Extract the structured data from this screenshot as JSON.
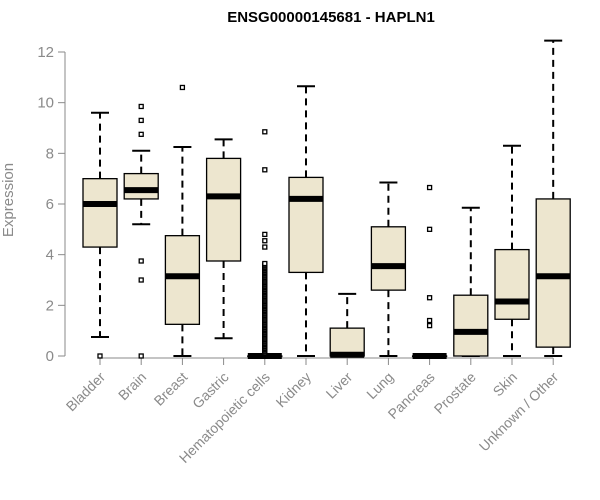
{
  "chart_data": {
    "type": "box",
    "title": "ENSG00000145681 - HAPLN1",
    "xlabel": "",
    "ylabel": "Expression",
    "ylim": [
      0,
      12.4
    ],
    "yticks": [
      0,
      2,
      4,
      6,
      8,
      10,
      12
    ],
    "grid": false,
    "box_fill": "#ede6cf",
    "categories": [
      "Bladder",
      "Brain",
      "Breast",
      "Gastric",
      "Hematopoietic cells",
      "Kidney",
      "Liver",
      "Lung",
      "Pancreas",
      "Prostate",
      "Skin",
      "Unknown / Other"
    ],
    "boxes": [
      {
        "category": "Bladder",
        "whisker_low": 0.75,
        "q1": 4.3,
        "median": 6.0,
        "q3": 7.0,
        "whisker_high": 9.6,
        "outliers": [
          0.0
        ]
      },
      {
        "category": "Brain",
        "whisker_low": 5.2,
        "q1": 6.2,
        "median": 6.55,
        "q3": 7.2,
        "whisker_high": 8.1,
        "outliers": [
          0.0,
          3.0,
          3.75,
          8.75,
          9.3,
          9.85
        ]
      },
      {
        "category": "Breast",
        "whisker_low": 0.0,
        "q1": 1.25,
        "median": 3.15,
        "q3": 4.75,
        "whisker_high": 8.25,
        "outliers": [
          10.6
        ]
      },
      {
        "category": "Gastric",
        "whisker_low": 0.7,
        "q1": 3.75,
        "median": 6.3,
        "q3": 7.8,
        "whisker_high": 8.55,
        "outliers": []
      },
      {
        "category": "Hematopoietic cells",
        "whisker_low": 0.0,
        "q1": 0.0,
        "median": 0.0,
        "q3": 0.0,
        "whisker_high": 0.0,
        "outliers": [
          0.1,
          0.15,
          0.2,
          0.25,
          0.3,
          0.35,
          0.4,
          0.45,
          0.5,
          0.55,
          0.6,
          0.65,
          0.7,
          0.75,
          0.8,
          0.85,
          0.9,
          0.95,
          1.0,
          1.05,
          1.1,
          1.15,
          1.2,
          1.25,
          1.3,
          1.35,
          1.4,
          1.45,
          1.5,
          1.55,
          1.6,
          1.65,
          1.7,
          1.75,
          1.8,
          1.85,
          1.9,
          1.95,
          2.0,
          2.05,
          2.1,
          2.15,
          2.2,
          2.25,
          2.3,
          2.35,
          2.4,
          2.45,
          2.5,
          2.55,
          2.6,
          2.65,
          2.7,
          2.75,
          2.8,
          2.85,
          2.9,
          2.95,
          3.0,
          3.05,
          3.1,
          3.15,
          3.2,
          3.25,
          3.3,
          3.35,
          3.4,
          3.45,
          3.5,
          3.55,
          3.6,
          3.65,
          4.3,
          4.55,
          4.8,
          7.35,
          8.85
        ]
      },
      {
        "category": "Kidney",
        "whisker_low": 0.0,
        "q1": 3.3,
        "median": 6.2,
        "q3": 7.05,
        "whisker_high": 10.65,
        "outliers": []
      },
      {
        "category": "Liver",
        "whisker_low": 0.0,
        "q1": 0.0,
        "median": 0.05,
        "q3": 1.1,
        "whisker_high": 2.45,
        "outliers": []
      },
      {
        "category": "Lung",
        "whisker_low": 0.0,
        "q1": 2.6,
        "median": 3.55,
        "q3": 5.1,
        "whisker_high": 6.85,
        "outliers": []
      },
      {
        "category": "Pancreas",
        "whisker_low": 0.0,
        "q1": 0.0,
        "median": 0.0,
        "q3": 0.0,
        "whisker_high": 0.0,
        "outliers": [
          1.2,
          1.4,
          2.3,
          5.0,
          6.65
        ]
      },
      {
        "category": "Prostate",
        "whisker_low": 0.0,
        "q1": 0.0,
        "median": 0.95,
        "q3": 2.4,
        "whisker_high": 5.85,
        "outliers": []
      },
      {
        "category": "Skin",
        "whisker_low": 0.0,
        "q1": 1.45,
        "median": 2.15,
        "q3": 4.2,
        "whisker_high": 8.3,
        "outliers": []
      },
      {
        "category": "Unknown / Other",
        "whisker_low": 0.0,
        "q1": 0.35,
        "median": 3.15,
        "q3": 6.2,
        "whisker_high": 12.45,
        "outliers": []
      }
    ]
  }
}
